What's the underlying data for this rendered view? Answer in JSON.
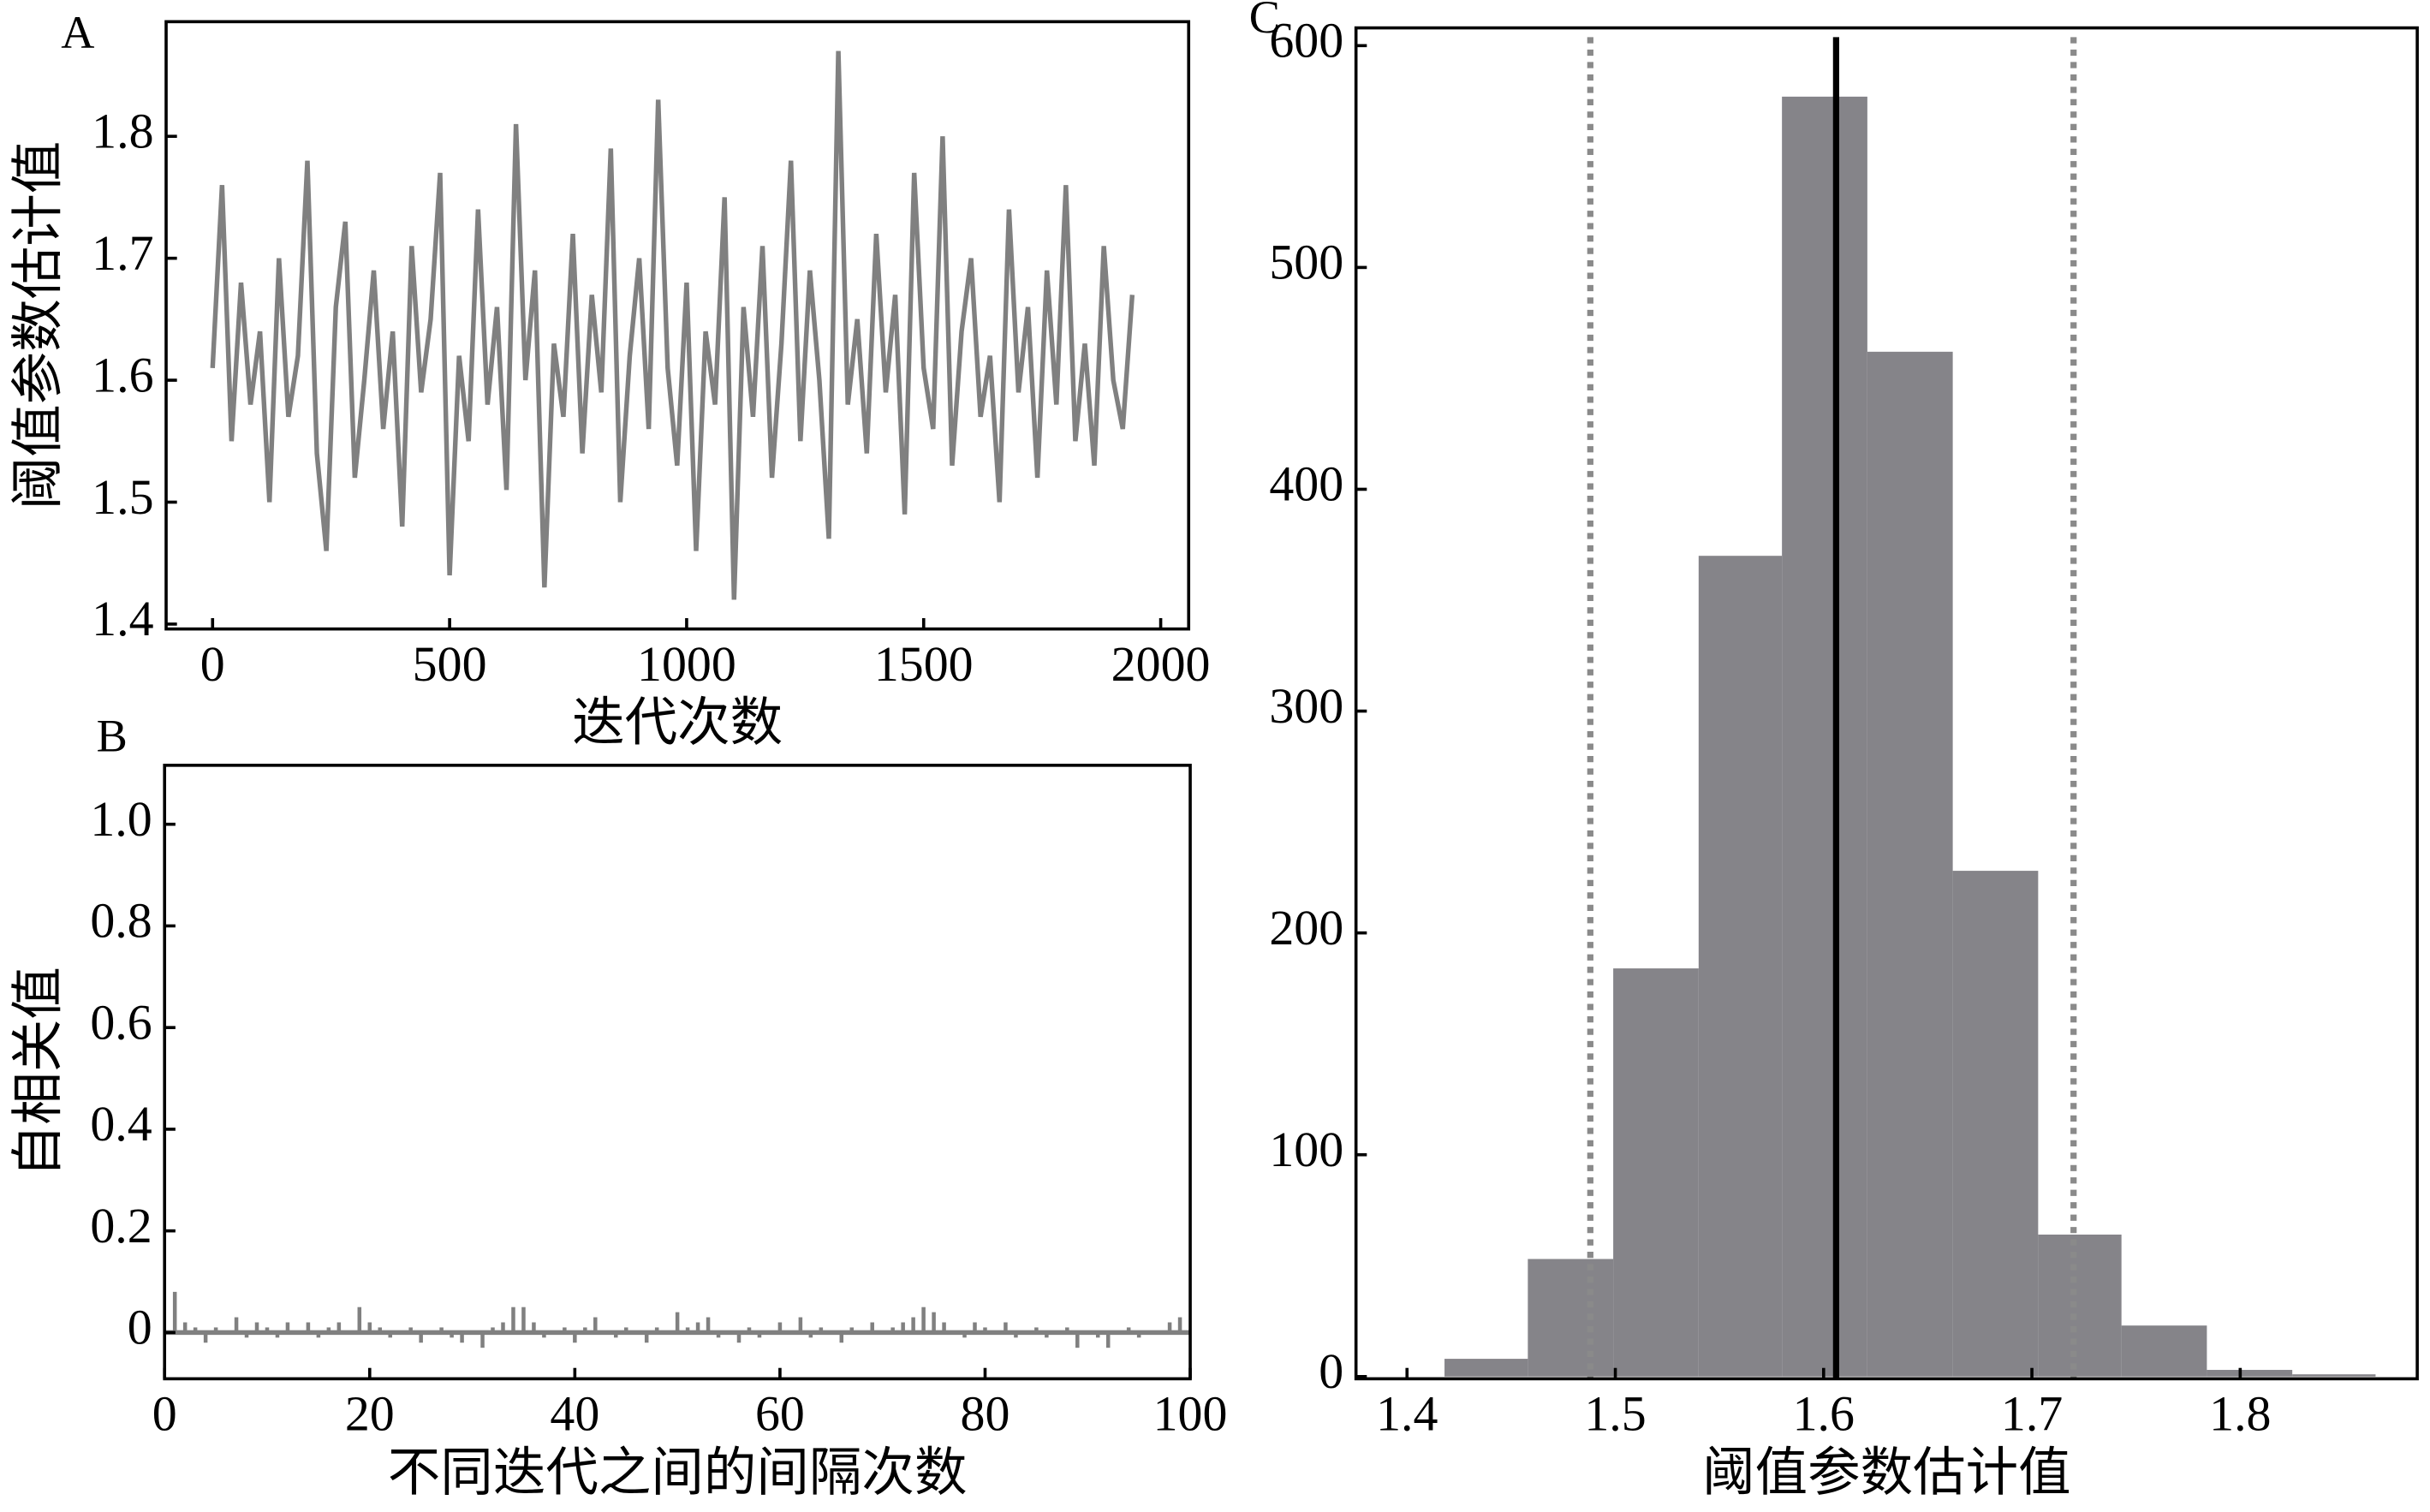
{
  "chart_data": [
    {
      "type": "line",
      "label": "A",
      "x_label": "迭代次数",
      "y_label": "阈值参数估计值",
      "color": "#808080",
      "x": [
        0,
        20,
        40,
        60,
        80,
        100,
        120,
        140,
        160,
        180,
        200,
        220,
        240,
        260,
        280,
        300,
        320,
        340,
        360,
        380,
        400,
        420,
        440,
        460,
        480,
        500,
        520,
        540,
        560,
        580,
        600,
        620,
        640,
        660,
        680,
        700,
        720,
        740,
        760,
        780,
        800,
        820,
        840,
        860,
        880,
        900,
        920,
        940,
        960,
        980,
        1000,
        1020,
        1040,
        1060,
        1080,
        1100,
        1120,
        1140,
        1160,
        1180,
        1200,
        1220,
        1240,
        1260,
        1280,
        1300,
        1320,
        1340,
        1360,
        1380,
        1400,
        1420,
        1440,
        1460,
        1480,
        1500,
        1520,
        1540,
        1560,
        1580,
        1600,
        1620,
        1640,
        1660,
        1680,
        1700,
        1720,
        1740,
        1760,
        1780,
        1800,
        1820,
        1840,
        1860,
        1880,
        1900,
        1920,
        1940
      ],
      "values": [
        1.61,
        1.76,
        1.55,
        1.68,
        1.58,
        1.64,
        1.5,
        1.7,
        1.57,
        1.62,
        1.78,
        1.54,
        1.46,
        1.66,
        1.73,
        1.52,
        1.6,
        1.69,
        1.56,
        1.64,
        1.48,
        1.71,
        1.59,
        1.65,
        1.77,
        1.44,
        1.62,
        1.55,
        1.74,
        1.58,
        1.66,
        1.51,
        1.81,
        1.6,
        1.69,
        1.43,
        1.63,
        1.57,
        1.72,
        1.54,
        1.67,
        1.59,
        1.79,
        1.5,
        1.62,
        1.7,
        1.56,
        1.83,
        1.61,
        1.53,
        1.68,
        1.46,
        1.64,
        1.58,
        1.75,
        1.42,
        1.66,
        1.57,
        1.71,
        1.52,
        1.63,
        1.78,
        1.55,
        1.69,
        1.6,
        1.47,
        1.87,
        1.58,
        1.65,
        1.54,
        1.72,
        1.59,
        1.67,
        1.49,
        1.77,
        1.61,
        1.56,
        1.8,
        1.53,
        1.64,
        1.7,
        1.57,
        1.62,
        1.5,
        1.74,
        1.59,
        1.66,
        1.52,
        1.69,
        1.58,
        1.76,
        1.55,
        1.63,
        1.53,
        1.71,
        1.6,
        1.56,
        1.67
      ],
      "xlim": [
        -98,
        2059
      ],
      "xticks": [
        0,
        500,
        1000,
        1500,
        2000
      ],
      "ylim": [
        1.396,
        1.894
      ],
      "yticks": [
        1.4,
        1.5,
        1.6,
        1.7,
        1.8
      ]
    },
    {
      "type": "stem",
      "label": "B",
      "x_label": "不同迭代之间的间隔次数",
      "y_label": "自相关值",
      "color": "#808080",
      "x": [
        1,
        2,
        3,
        4,
        5,
        6,
        7,
        8,
        9,
        10,
        11,
        12,
        13,
        14,
        15,
        16,
        17,
        18,
        19,
        20,
        21,
        22,
        23,
        24,
        25,
        26,
        27,
        28,
        29,
        30,
        31,
        32,
        33,
        34,
        35,
        36,
        37,
        38,
        39,
        40,
        41,
        42,
        43,
        44,
        45,
        46,
        47,
        48,
        49,
        50,
        51,
        52,
        53,
        54,
        55,
        56,
        57,
        58,
        59,
        60,
        61,
        62,
        63,
        64,
        65,
        66,
        67,
        68,
        69,
        70,
        71,
        72,
        73,
        74,
        75,
        76,
        77,
        78,
        79,
        80,
        81,
        82,
        83,
        84,
        85,
        86,
        87,
        88,
        89,
        90,
        91,
        92,
        93,
        94,
        95,
        96,
        97,
        98,
        99,
        100
      ],
      "values": [
        0.08,
        0.02,
        0.01,
        -0.02,
        0.01,
        0.0,
        0.03,
        -0.01,
        0.02,
        0.01,
        -0.01,
        0.02,
        0.0,
        0.02,
        -0.01,
        0.01,
        0.02,
        0.0,
        0.05,
        0.02,
        0.01,
        -0.01,
        0.0,
        0.01,
        -0.02,
        0.0,
        0.01,
        -0.01,
        -0.02,
        0.0,
        -0.03,
        0.01,
        0.02,
        0.05,
        0.05,
        0.02,
        -0.01,
        0.0,
        0.01,
        -0.02,
        0.01,
        0.03,
        0.0,
        -0.01,
        0.01,
        0.0,
        -0.02,
        0.01,
        0.0,
        0.04,
        0.01,
        0.02,
        0.03,
        -0.01,
        0.0,
        -0.02,
        0.01,
        -0.01,
        0.0,
        0.02,
        0.0,
        0.03,
        -0.01,
        0.01,
        0.0,
        -0.02,
        0.01,
        0.0,
        0.02,
        0.0,
        0.01,
        0.02,
        0.03,
        0.05,
        0.04,
        0.02,
        0.0,
        -0.01,
        0.02,
        0.01,
        0.0,
        0.02,
        -0.01,
        0.0,
        0.01,
        -0.01,
        0.0,
        0.01,
        -0.03,
        0.0,
        -0.01,
        -0.03,
        0.0,
        0.01,
        -0.01,
        0.0,
        0.0,
        0.02,
        0.03,
        0.0
      ],
      "xlim": [
        0,
        100
      ],
      "xticks": [
        0,
        20,
        40,
        60,
        80,
        100
      ],
      "ylim": [
        -0.091,
        1.116
      ],
      "yticks": [
        0,
        0.2,
        0.4,
        0.6,
        0.8,
        {
          "value": 1,
          "label": "1.0"
        }
      ]
    },
    {
      "type": "histogram",
      "label": "C",
      "x_label": "阈值参数估计值",
      "color": "#858489",
      "bins": [
        1.418,
        1.458,
        1.499,
        1.54,
        1.58,
        1.621,
        1.662,
        1.703,
        1.743,
        1.784,
        1.825,
        1.865
      ],
      "values": [
        8,
        53,
        184,
        370,
        577,
        462,
        228,
        64,
        23,
        3,
        1
      ],
      "vlines": [
        {
          "value": 1.606,
          "color": "#000000",
          "style": "solid"
        },
        {
          "value": 1.488,
          "color": "#8a8a8a",
          "style": "dotted"
        },
        {
          "value": 1.72,
          "color": "#8a8a8a",
          "style": "dotted"
        }
      ],
      "xlim": [
        1.3755,
        1.885
      ],
      "xticks": [
        1.4,
        1.5,
        1.6,
        1.7,
        1.8
      ],
      "ylim": [
        -1,
        608
      ],
      "yticks": [
        0,
        100,
        200,
        300,
        400,
        500,
        600
      ]
    }
  ]
}
